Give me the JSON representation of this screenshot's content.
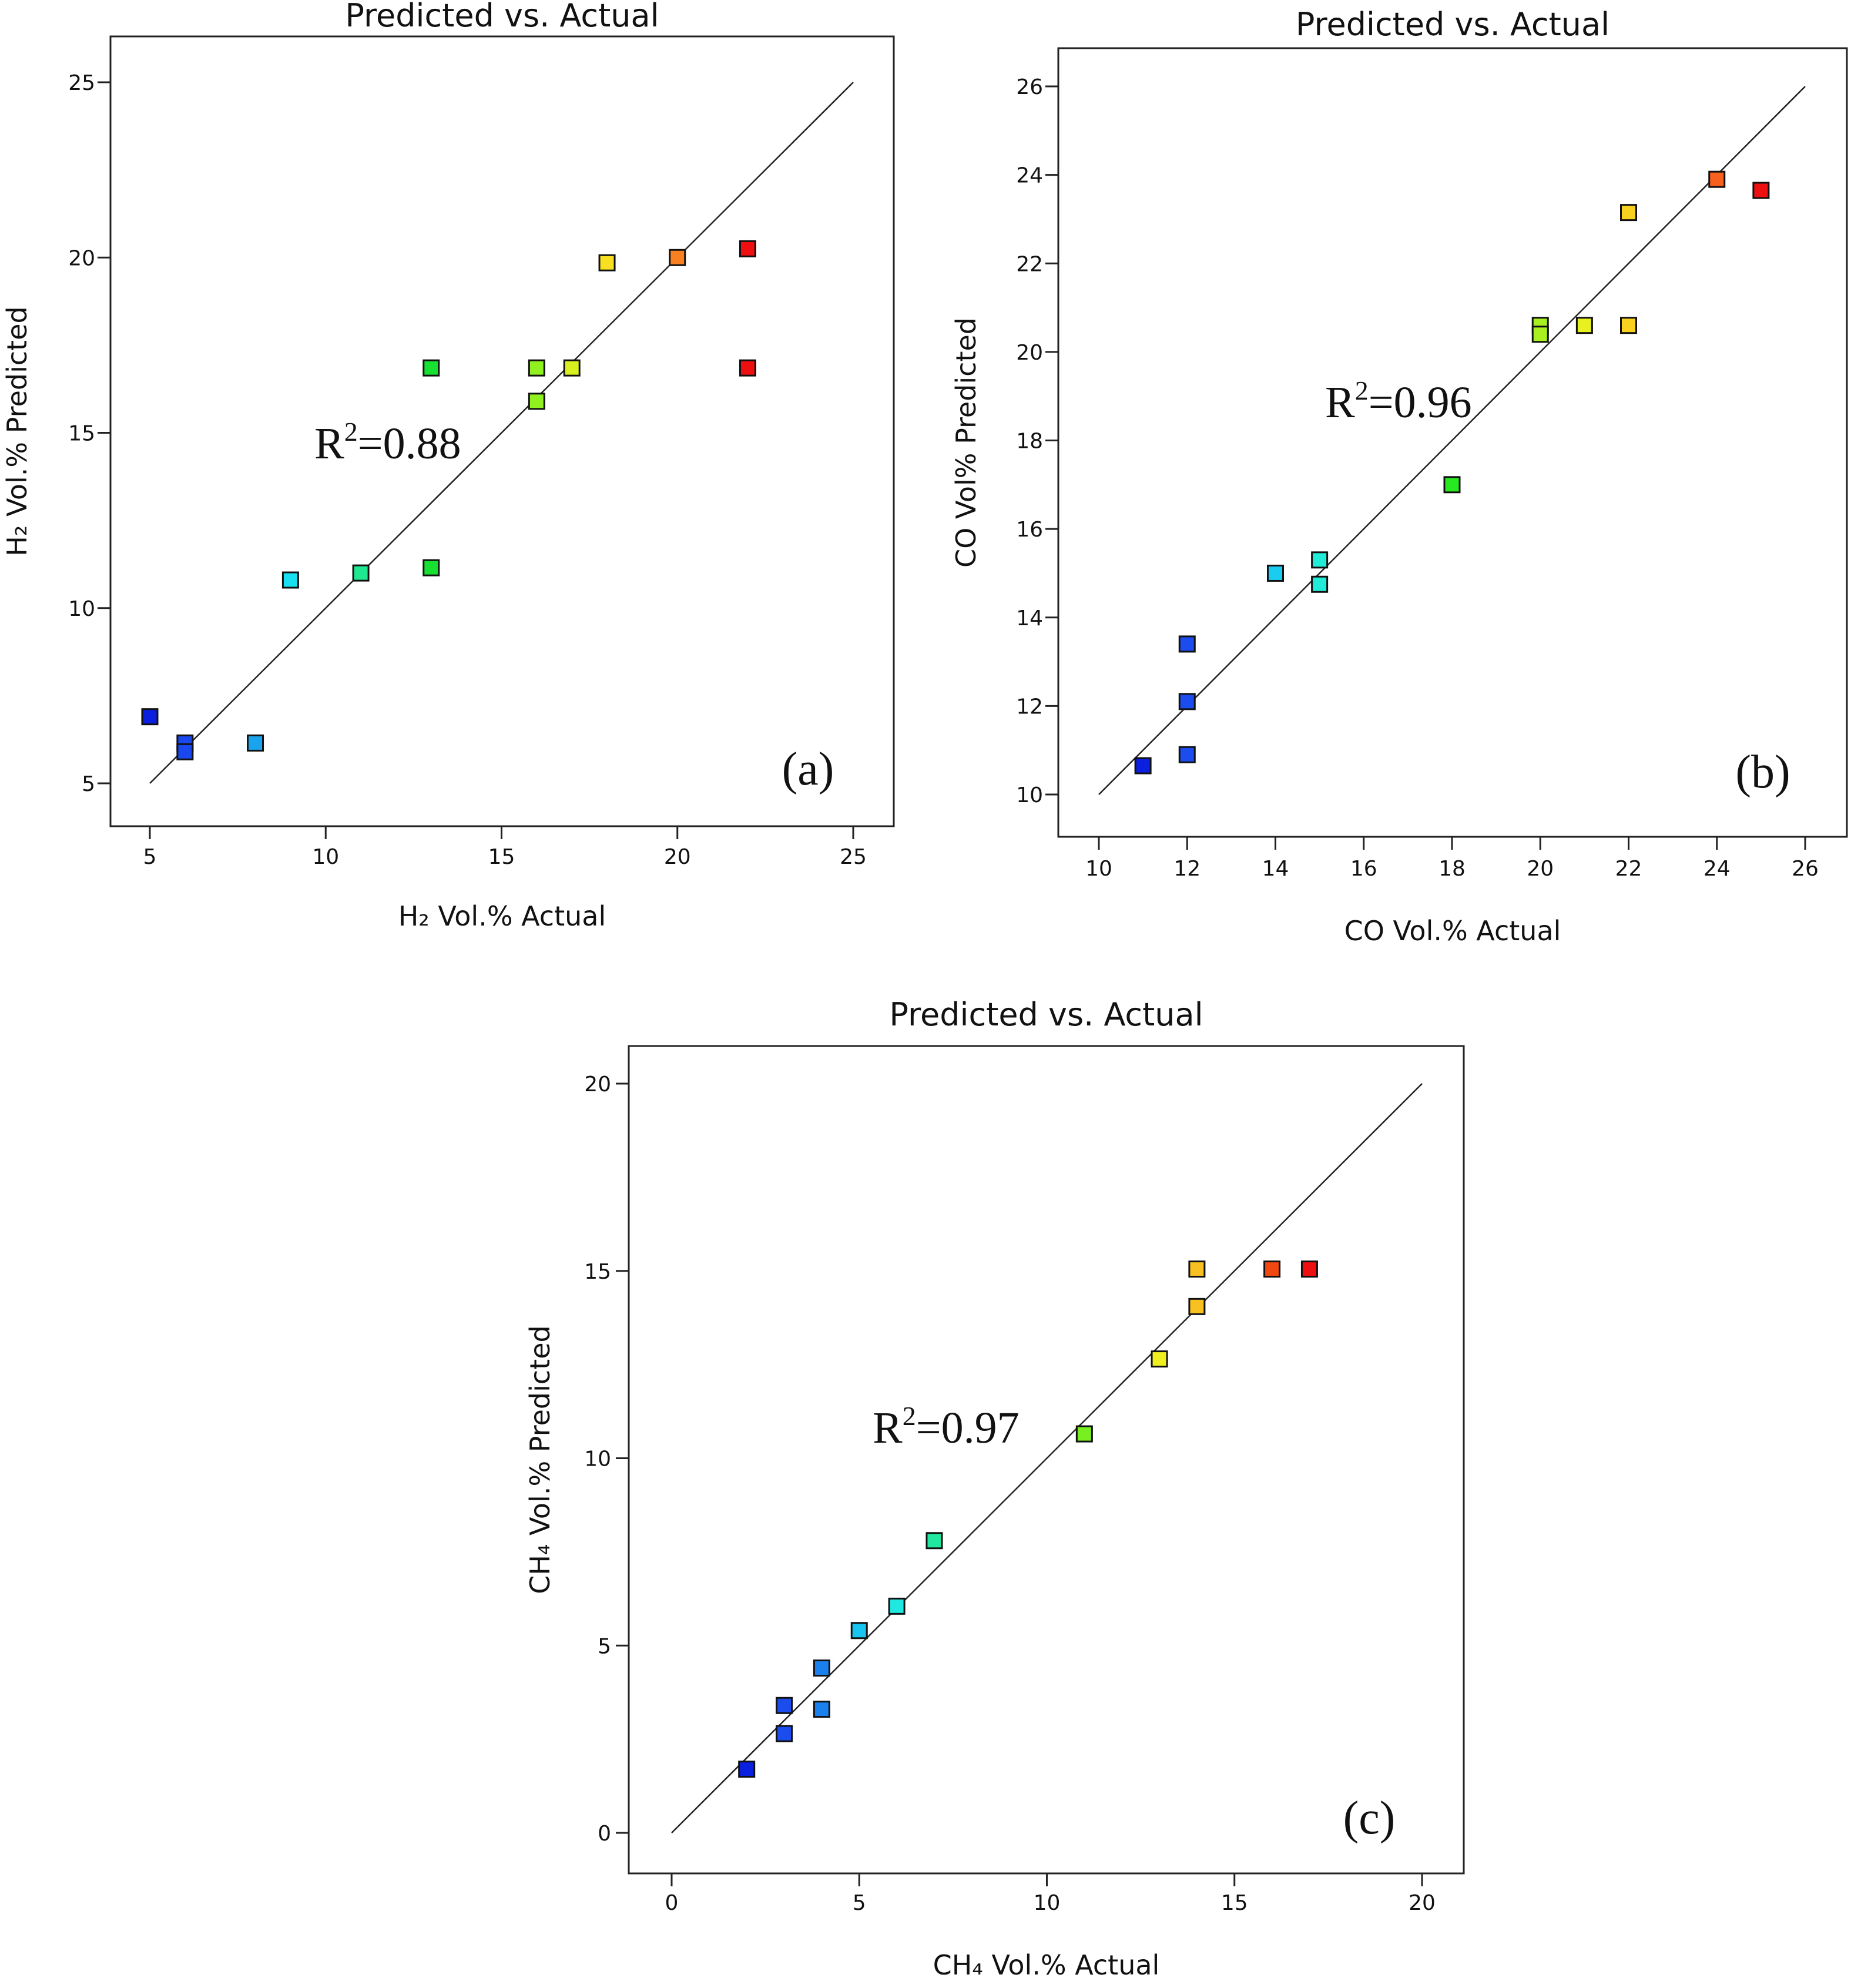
{
  "chart_data": [
    {
      "type": "scatter",
      "panel_label": "(a)",
      "title": "Predicted vs. Actual",
      "xlabel": "H₂ Vol.% Actual",
      "ylabel": "H₂  Vol.% Predicted",
      "xlim": [
        5,
        25
      ],
      "ylim": [
        5,
        25
      ],
      "xticks": [
        5,
        10,
        15,
        20,
        25
      ],
      "yticks": [
        5,
        10,
        15,
        20,
        25
      ],
      "annotation": "R²=0.88",
      "annotation_main": "R",
      "annotation_sup": "2",
      "annotation_rest": "=0.88",
      "reference_line": [
        [
          5,
          5
        ],
        [
          25,
          25
        ]
      ],
      "points": [
        {
          "x": 5,
          "y": 6.9,
          "color": "#0b1fe0"
        },
        {
          "x": 6,
          "y": 6.15,
          "color": "#1a48ee"
        },
        {
          "x": 6,
          "y": 5.9,
          "color": "#1a48ee"
        },
        {
          "x": 8,
          "y": 6.15,
          "color": "#1aa4ee"
        },
        {
          "x": 9,
          "y": 10.8,
          "color": "#18e0f0"
        },
        {
          "x": 11,
          "y": 11.0,
          "color": "#20e890"
        },
        {
          "x": 13,
          "y": 16.85,
          "color": "#18e030"
        },
        {
          "x": 13,
          "y": 11.15,
          "color": "#18e030"
        },
        {
          "x": 16,
          "y": 16.85,
          "color": "#90f020"
        },
        {
          "x": 16,
          "y": 15.9,
          "color": "#90f020"
        },
        {
          "x": 17,
          "y": 16.85,
          "color": "#d8f020"
        },
        {
          "x": 18,
          "y": 19.85,
          "color": "#f8e020"
        },
        {
          "x": 20,
          "y": 20.0,
          "color": "#f88020"
        },
        {
          "x": 22,
          "y": 20.25,
          "color": "#ee1010"
        },
        {
          "x": 22,
          "y": 16.85,
          "color": "#ee1010"
        }
      ]
    },
    {
      "type": "scatter",
      "panel_label": "(b)",
      "title": "Predicted vs. Actual",
      "xlabel": "CO Vol.% Actual",
      "ylabel": "CO Vol% Predicted",
      "xlim": [
        10,
        26
      ],
      "ylim": [
        10,
        26
      ],
      "xticks": [
        10,
        12,
        14,
        16,
        18,
        20,
        22,
        24,
        26
      ],
      "yticks": [
        10,
        12,
        14,
        16,
        18,
        20,
        22,
        24,
        26
      ],
      "annotation": "R²=0.96",
      "annotation_main": "R",
      "annotation_sup": "2",
      "annotation_rest": "=0.96",
      "reference_line": [
        [
          10,
          10
        ],
        [
          26,
          26
        ]
      ],
      "points": [
        {
          "x": 11,
          "y": 10.65,
          "color": "#0b1fe0"
        },
        {
          "x": 12,
          "y": 13.4,
          "color": "#1a4cee"
        },
        {
          "x": 12,
          "y": 12.1,
          "color": "#1a4cee"
        },
        {
          "x": 12,
          "y": 10.9,
          "color": "#1a4cee"
        },
        {
          "x": 14,
          "y": 15.0,
          "color": "#18cdf0"
        },
        {
          "x": 15,
          "y": 15.3,
          "color": "#20ecd8"
        },
        {
          "x": 15,
          "y": 14.75,
          "color": "#20ecd8"
        },
        {
          "x": 18,
          "y": 17.0,
          "color": "#28e820"
        },
        {
          "x": 20,
          "y": 20.6,
          "color": "#a8f020"
        },
        {
          "x": 20,
          "y": 20.4,
          "color": "#a8f020"
        },
        {
          "x": 21,
          "y": 20.6,
          "color": "#e8f020"
        },
        {
          "x": 22,
          "y": 23.15,
          "color": "#f8d020"
        },
        {
          "x": 22,
          "y": 20.6,
          "color": "#f8d020"
        },
        {
          "x": 24,
          "y": 23.9,
          "color": "#f86020"
        },
        {
          "x": 25,
          "y": 23.65,
          "color": "#ee1010"
        }
      ]
    },
    {
      "type": "scatter",
      "panel_label": "(c)",
      "title": "Predicted vs. Actual",
      "xlabel": "CH₄ Vol.% Actual",
      "ylabel": "CH₄ Vol.% Predicted",
      "xlim": [
        0,
        20
      ],
      "ylim": [
        0,
        20
      ],
      "xticks": [
        0,
        5,
        10,
        15,
        20
      ],
      "yticks": [
        0,
        5,
        10,
        15,
        20
      ],
      "annotation": "R²=0.97",
      "annotation_main": "R",
      "annotation_sup": "2",
      "annotation_rest": "=0.97",
      "reference_line": [
        [
          0,
          0
        ],
        [
          20,
          20
        ]
      ],
      "points": [
        {
          "x": 2,
          "y": 1.7,
          "color": "#0b1fe0"
        },
        {
          "x": 3,
          "y": 3.4,
          "color": "#1a4cee"
        },
        {
          "x": 3,
          "y": 2.65,
          "color": "#1a4cee"
        },
        {
          "x": 4,
          "y": 4.4,
          "color": "#1a80ee"
        },
        {
          "x": 4,
          "y": 3.3,
          "color": "#1a80ee"
        },
        {
          "x": 5,
          "y": 5.4,
          "color": "#18c4f0"
        },
        {
          "x": 6,
          "y": 6.05,
          "color": "#20e8e0"
        },
        {
          "x": 7,
          "y": 7.8,
          "color": "#20e8a0"
        },
        {
          "x": 11,
          "y": 10.65,
          "color": "#78f020"
        },
        {
          "x": 13,
          "y": 12.65,
          "color": "#f0f020"
        },
        {
          "x": 14,
          "y": 15.05,
          "color": "#f8c020"
        },
        {
          "x": 14,
          "y": 14.05,
          "color": "#f8c020"
        },
        {
          "x": 16,
          "y": 15.05,
          "color": "#f04810"
        },
        {
          "x": 17,
          "y": 15.05,
          "color": "#ee1010"
        }
      ]
    }
  ]
}
